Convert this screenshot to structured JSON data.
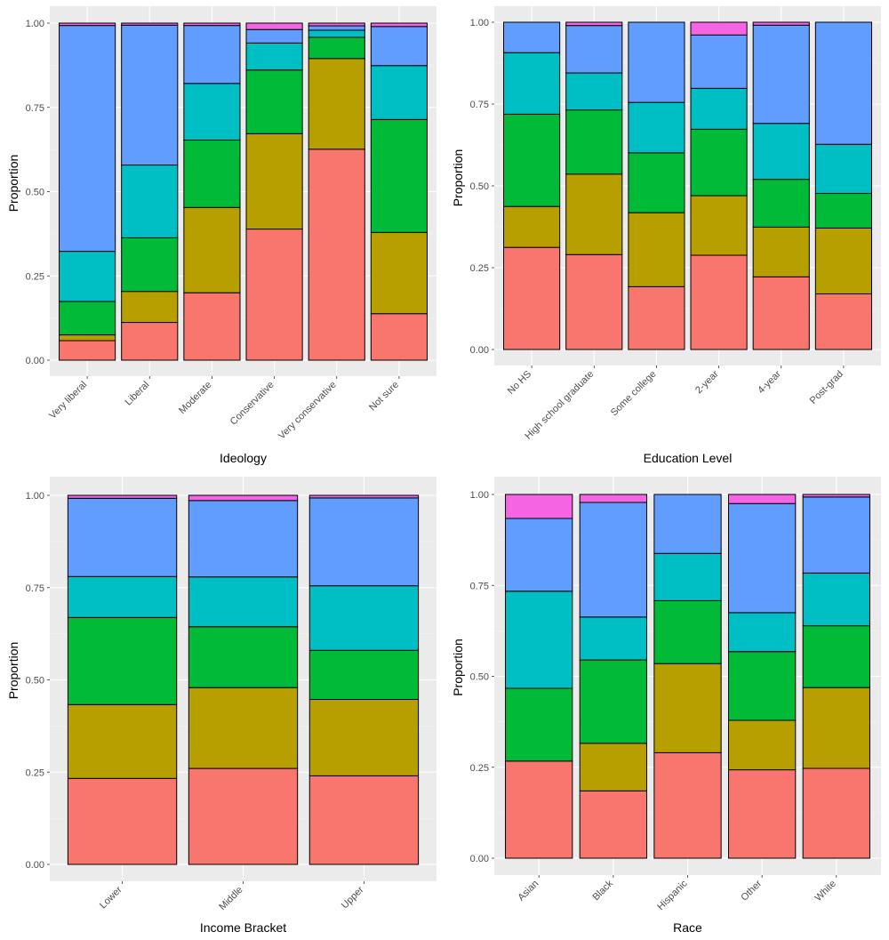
{
  "chart_data": [
    {
      "type": "bar",
      "stacked": true,
      "xlabel": "Ideology",
      "ylabel": "Proportion",
      "ylim": [
        0,
        1
      ],
      "y_ticks": [
        "0.00",
        "0.25",
        "0.50",
        "0.75",
        "1.00"
      ],
      "categories": [
        "Very liberal",
        "Liberal",
        "Moderate",
        "Conservative",
        "Very conservative",
        "Not sure"
      ],
      "series": [
        {
          "color": "#F8766D",
          "values": [
            0.058,
            0.112,
            0.2,
            0.389,
            0.626,
            0.138
          ]
        },
        {
          "color": "#B79F00",
          "values": [
            0.017,
            0.092,
            0.253,
            0.283,
            0.269,
            0.241
          ]
        },
        {
          "color": "#00BA38",
          "values": [
            0.099,
            0.159,
            0.2,
            0.189,
            0.063,
            0.335
          ]
        },
        {
          "color": "#00BFC4",
          "values": [
            0.149,
            0.216,
            0.168,
            0.08,
            0.021,
            0.16
          ]
        },
        {
          "color": "#619CFF",
          "values": [
            0.67,
            0.415,
            0.172,
            0.04,
            0.013,
            0.116
          ]
        },
        {
          "color": "#F564E3",
          "values": [
            0.007,
            0.006,
            0.007,
            0.019,
            0.008,
            0.01
          ]
        }
      ],
      "grid": true,
      "legend": "none"
    },
    {
      "type": "bar",
      "stacked": true,
      "xlabel": "Education Level",
      "ylabel": "Proportion",
      "ylim": [
        0,
        1
      ],
      "y_ticks": [
        "0.00",
        "0.25",
        "0.50",
        "0.75",
        "1.00"
      ],
      "categories": [
        "No HS",
        "High school graduate",
        "Some college",
        "2-year",
        "4-year",
        "Post-grad"
      ],
      "series": [
        {
          "color": "#F8766D",
          "values": [
            0.312,
            0.29,
            0.192,
            0.288,
            0.222,
            0.17
          ]
        },
        {
          "color": "#B79F00",
          "values": [
            0.125,
            0.246,
            0.226,
            0.182,
            0.152,
            0.201
          ]
        },
        {
          "color": "#00BA38",
          "values": [
            0.282,
            0.196,
            0.183,
            0.203,
            0.146,
            0.106
          ]
        },
        {
          "color": "#00BFC4",
          "values": [
            0.188,
            0.113,
            0.154,
            0.125,
            0.171,
            0.15
          ]
        },
        {
          "color": "#619CFF",
          "values": [
            0.093,
            0.145,
            0.245,
            0.163,
            0.3,
            0.373
          ]
        },
        {
          "color": "#F564E3",
          "values": [
            0.0,
            0.01,
            0.0,
            0.039,
            0.009,
            0.0
          ]
        }
      ],
      "grid": true,
      "legend": "none"
    },
    {
      "type": "bar",
      "stacked": true,
      "xlabel": "Income Bracket",
      "ylabel": "Proportion",
      "ylim": [
        0,
        1
      ],
      "y_ticks": [
        "0.00",
        "0.25",
        "0.50",
        "0.75",
        "1.00"
      ],
      "categories": [
        "Lower",
        "Middle",
        "Upper"
      ],
      "series": [
        {
          "color": "#F8766D",
          "values": [
            0.233,
            0.26,
            0.24
          ]
        },
        {
          "color": "#B79F00",
          "values": [
            0.2,
            0.219,
            0.207
          ]
        },
        {
          "color": "#00BA38",
          "values": [
            0.236,
            0.165,
            0.133
          ]
        },
        {
          "color": "#00BFC4",
          "values": [
            0.111,
            0.135,
            0.175
          ]
        },
        {
          "color": "#619CFF",
          "values": [
            0.212,
            0.207,
            0.238
          ]
        },
        {
          "color": "#F564E3",
          "values": [
            0.008,
            0.014,
            0.007
          ]
        }
      ],
      "grid": true,
      "legend": "none"
    },
    {
      "type": "bar",
      "stacked": true,
      "xlabel": "Race",
      "ylabel": "Proportion",
      "ylim": [
        0,
        1
      ],
      "y_ticks": [
        "0.00",
        "0.25",
        "0.50",
        "0.75",
        "1.00"
      ],
      "categories": [
        "Asian",
        "Black",
        "Hispanic",
        "Other",
        "White"
      ],
      "series": [
        {
          "color": "#F8766D",
          "values": [
            0.267,
            0.185,
            0.29,
            0.243,
            0.247
          ]
        },
        {
          "color": "#B79F00",
          "values": [
            0.0,
            0.131,
            0.245,
            0.136,
            0.222
          ]
        },
        {
          "color": "#00BA38",
          "values": [
            0.2,
            0.229,
            0.173,
            0.189,
            0.17
          ]
        },
        {
          "color": "#00BFC4",
          "values": [
            0.267,
            0.118,
            0.13,
            0.107,
            0.145
          ]
        },
        {
          "color": "#619CFF",
          "values": [
            0.2,
            0.315,
            0.162,
            0.3,
            0.209
          ]
        },
        {
          "color": "#F564E3",
          "values": [
            0.066,
            0.022,
            0.0,
            0.025,
            0.007
          ]
        }
      ],
      "grid": true,
      "legend": "none"
    }
  ]
}
